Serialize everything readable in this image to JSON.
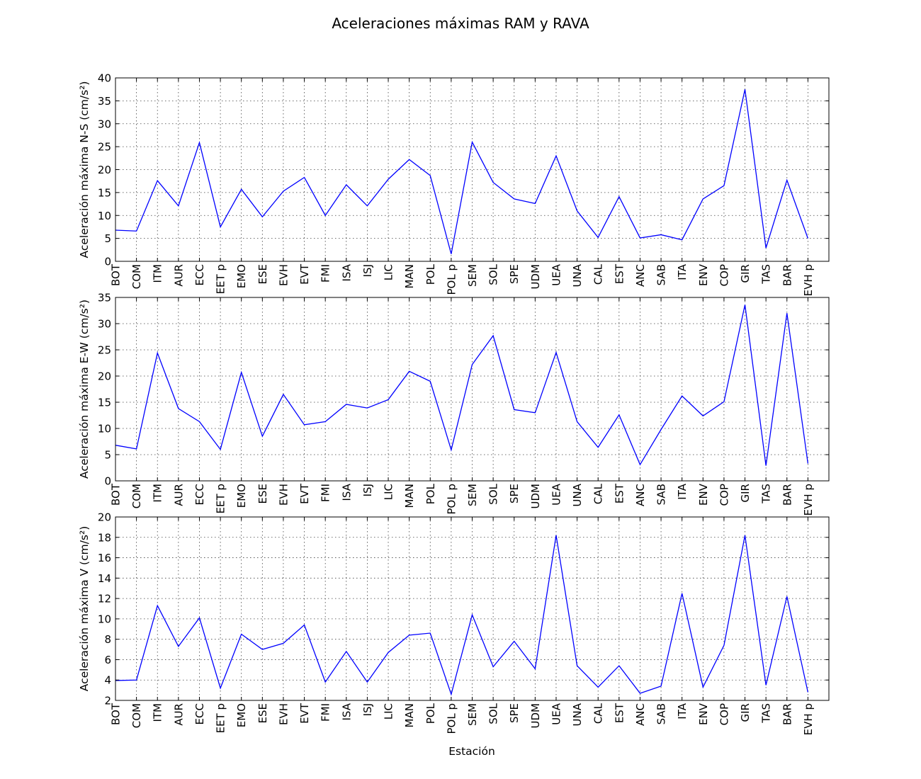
{
  "suptitle": "Aceleraciones máximas RAM y RAVA",
  "colors": {
    "line": "#0000ff",
    "background": "#ffffff",
    "axes": "#000000"
  },
  "chart_data": [
    {
      "type": "line",
      "ylabel": "Aceleración máxima N-S (cm/s²)",
      "xlabel": "",
      "ylim": [
        0,
        40
      ],
      "yticks": [
        0,
        5,
        10,
        15,
        20,
        25,
        30,
        35,
        40
      ],
      "grid": true,
      "categories": [
        "BOT",
        "COM",
        "ITM",
        "AUR",
        "ECC",
        "EET p",
        "EMO",
        "ESE",
        "EVH",
        "EVT",
        "FMI",
        "ISA",
        "ISJ",
        "LIC",
        "MAN",
        "POL",
        "POL p",
        "SEM",
        "SOL",
        "SPE",
        "UDM",
        "UEA",
        "UNA",
        "CAL",
        "EST",
        "ANC",
        "SAB",
        "ITA",
        "ENV",
        "COP",
        "GIR",
        "TAS",
        "BAR",
        "EVH p"
      ],
      "series": [
        {
          "values": [
            6.8,
            6.6,
            17.6,
            12.1,
            25.9,
            7.5,
            15.7,
            9.7,
            15.3,
            18.3,
            10.0,
            16.7,
            12.1,
            17.9,
            22.2,
            18.7,
            1.6,
            26.0,
            17.2,
            13.6,
            12.6,
            23.0,
            11.0,
            5.2,
            14.1,
            5.1,
            5.8,
            4.7,
            13.6,
            16.5,
            37.5,
            2.9,
            17.7,
            5.0
          ]
        }
      ]
    },
    {
      "type": "line",
      "ylabel": "Aceleración máxima E-W (cm/s²)",
      "xlabel": "",
      "ylim": [
        0,
        35
      ],
      "yticks": [
        0,
        5,
        10,
        15,
        20,
        25,
        30,
        35
      ],
      "grid": true,
      "categories": [
        "BOT",
        "COM",
        "ITM",
        "AUR",
        "ECC",
        "EET p",
        "EMO",
        "ESE",
        "EVH",
        "EVT",
        "FMI",
        "ISA",
        "ISJ",
        "LIC",
        "MAN",
        "POL",
        "POL p",
        "SEM",
        "SOL",
        "SPE",
        "UDM",
        "UEA",
        "UNA",
        "CAL",
        "EST",
        "ANC",
        "SAB",
        "ITA",
        "ENV",
        "COP",
        "GIR",
        "TAS",
        "BAR",
        "EVH p"
      ],
      "series": [
        {
          "values": [
            6.8,
            6.1,
            24.4,
            13.8,
            11.3,
            6.0,
            20.7,
            8.5,
            16.5,
            10.7,
            11.3,
            14.6,
            13.9,
            15.5,
            20.9,
            19.0,
            5.9,
            22.2,
            27.7,
            13.6,
            13.0,
            24.5,
            11.3,
            6.4,
            12.6,
            3.1,
            9.8,
            16.2,
            12.4,
            15.1,
            33.6,
            2.9,
            32.0,
            3.3
          ]
        }
      ]
    },
    {
      "type": "line",
      "ylabel": "Aceleración máxima V (cm/s²)",
      "xlabel": "Estación",
      "ylim": [
        2,
        20
      ],
      "yticks": [
        2,
        4,
        6,
        8,
        10,
        12,
        14,
        16,
        18,
        20
      ],
      "grid": true,
      "categories": [
        "BOT",
        "COM",
        "ITM",
        "AUR",
        "ECC",
        "EET p",
        "EMO",
        "ESE",
        "EVH",
        "EVT",
        "FMI",
        "ISA",
        "ISJ",
        "LIC",
        "MAN",
        "POL",
        "POL p",
        "SEM",
        "SOL",
        "SPE",
        "UDM",
        "UEA",
        "UNA",
        "CAL",
        "EST",
        "ANC",
        "SAB",
        "ITA",
        "ENV",
        "COP",
        "GIR",
        "TAS",
        "BAR",
        "EVH p"
      ],
      "series": [
        {
          "values": [
            3.95,
            4.0,
            11.3,
            7.3,
            10.1,
            3.2,
            8.5,
            7.0,
            7.6,
            9.4,
            3.8,
            6.8,
            3.8,
            6.7,
            8.4,
            8.6,
            2.6,
            10.4,
            5.3,
            7.8,
            5.1,
            18.2,
            5.4,
            3.3,
            5.4,
            2.7,
            3.4,
            12.5,
            3.3,
            7.4,
            18.2,
            3.5,
            12.2,
            2.8
          ]
        }
      ]
    }
  ]
}
